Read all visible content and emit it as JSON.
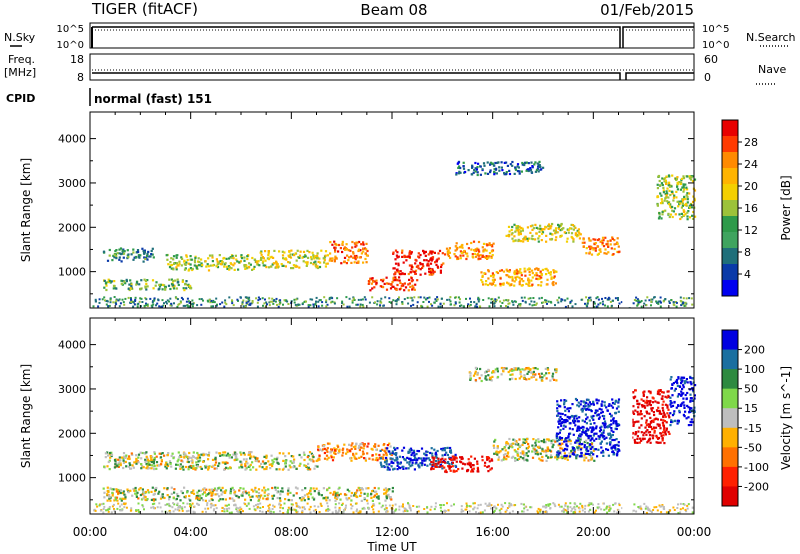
{
  "header": {
    "title_left": "TIGER (fitACF)",
    "title_center": "Beam 08",
    "title_right": "01/Feb/2015"
  },
  "strip": {
    "nsky_label": "N.Sky",
    "nsky_ticks": [
      "10^5",
      "10^0"
    ],
    "nsearch_label": "N.Search",
    "nsearch_ticks": [
      "10^5",
      "10^0"
    ],
    "freq_label_1": "Freq.",
    "freq_label_2": "[MHz]",
    "freq_ticks": [
      "18",
      "8"
    ],
    "nave_label": "Nave",
    "nave_ticks": [
      "60",
      "0"
    ],
    "cpid_label": "CPID",
    "cpid_value": "normal (fast) 151"
  },
  "axes": {
    "ylabel": "Slant Range [km]",
    "yticks": [
      "4000",
      "3000",
      "2000",
      "1000"
    ],
    "xlabel": "Time UT",
    "xticks": [
      "00:00",
      "04:00",
      "08:00",
      "12:00",
      "16:00",
      "20:00",
      "00:00"
    ]
  },
  "colorbars": {
    "power_label": "Power [dB]",
    "power_ticks": [
      "28",
      "24",
      "20",
      "16",
      "12",
      "8",
      "4"
    ],
    "power_colors": [
      "#e80000",
      "#ff3a00",
      "#ff8a00",
      "#ffb400",
      "#f4d000",
      "#9cc23a",
      "#2e9a4a",
      "#3fa45f",
      "#1f6f7a",
      "#0a3aa8",
      "#0000f0"
    ],
    "velocity_label": "Velocity [m s^-1]",
    "velocity_ticks": [
      "200",
      "100",
      "50",
      "15",
      "-15",
      "-50",
      "-100",
      "-200"
    ],
    "velocity_colors": [
      "#0000e0",
      "#1a6fa0",
      "#2e8a40",
      "#7fd84a",
      "#bebebe",
      "#ffb000",
      "#ff7000",
      "#ff2000",
      "#e00000"
    ]
  },
  "chart_data": [
    {
      "type": "heatmap",
      "title": "Power",
      "xlabel": "Time UT",
      "ylabel": "Slant Range [km]",
      "xlim": [
        0,
        24
      ],
      "ylim": [
        180,
        4600
      ],
      "colorbar": {
        "label": "Power [dB]",
        "range": [
          0,
          30
        ]
      },
      "regions": [
        {
          "t": [
            0.5,
            2.5
          ],
          "r": [
            1250,
            1550
          ],
          "value": 8
        },
        {
          "t": [
            0.5,
            4.0
          ],
          "r": [
            600,
            850
          ],
          "value": 12
        },
        {
          "t": [
            3.0,
            6.5
          ],
          "r": [
            1050,
            1400
          ],
          "value": 14
        },
        {
          "t": [
            6.5,
            9.5
          ],
          "r": [
            1100,
            1500
          ],
          "value": 16
        },
        {
          "t": [
            9.5,
            11.0
          ],
          "r": [
            1200,
            1700
          ],
          "value": 24
        },
        {
          "t": [
            11.0,
            13.0
          ],
          "r": [
            600,
            900
          ],
          "value": 26
        },
        {
          "t": [
            12.0,
            14.0
          ],
          "r": [
            950,
            1500
          ],
          "value": 28
        },
        {
          "t": [
            14.0,
            16.0
          ],
          "r": [
            1300,
            1700
          ],
          "value": 22
        },
        {
          "t": [
            15.5,
            18.5
          ],
          "r": [
            700,
            1100
          ],
          "value": 20
        },
        {
          "t": [
            16.5,
            19.5
          ],
          "r": [
            1700,
            2100
          ],
          "value": 16
        },
        {
          "t": [
            19.5,
            21.0
          ],
          "r": [
            1400,
            1800
          ],
          "value": 22
        },
        {
          "t": [
            22.5,
            24.0
          ],
          "r": [
            2200,
            3200
          ],
          "value": 14
        },
        {
          "t": [
            14.5,
            18.0
          ],
          "r": [
            3200,
            3500
          ],
          "value": 6
        }
      ]
    },
    {
      "type": "heatmap",
      "title": "Velocity",
      "xlabel": "Time UT",
      "ylabel": "Slant Range [km]",
      "xlim": [
        0,
        24
      ],
      "ylim": [
        180,
        4600
      ],
      "colorbar": {
        "label": "Velocity [m s^-1]",
        "range": [
          -200,
          200
        ]
      },
      "regions": [
        {
          "t": [
            0.5,
            9.0
          ],
          "r": [
            1200,
            1600
          ],
          "value": 0
        },
        {
          "t": [
            0.5,
            12.0
          ],
          "r": [
            500,
            800
          ],
          "value": 0
        },
        {
          "t": [
            9.0,
            12.0
          ],
          "r": [
            1400,
            1800
          ],
          "value": -60
        },
        {
          "t": [
            11.5,
            14.5
          ],
          "r": [
            1200,
            1700
          ],
          "value": 150
        },
        {
          "t": [
            13.5,
            16.0
          ],
          "r": [
            1150,
            1500
          ],
          "value": -180
        },
        {
          "t": [
            16.0,
            20.0
          ],
          "r": [
            1400,
            1900
          ],
          "value": 0
        },
        {
          "t": [
            18.5,
            21.0
          ],
          "r": [
            1500,
            2800
          ],
          "value": 180
        },
        {
          "t": [
            21.5,
            23.0
          ],
          "r": [
            1800,
            3000
          ],
          "value": -190
        },
        {
          "t": [
            23.0,
            24.0
          ],
          "r": [
            2200,
            3300
          ],
          "value": 180
        },
        {
          "t": [
            15.0,
            18.5
          ],
          "r": [
            3200,
            3500
          ],
          "value": 0
        }
      ]
    }
  ]
}
